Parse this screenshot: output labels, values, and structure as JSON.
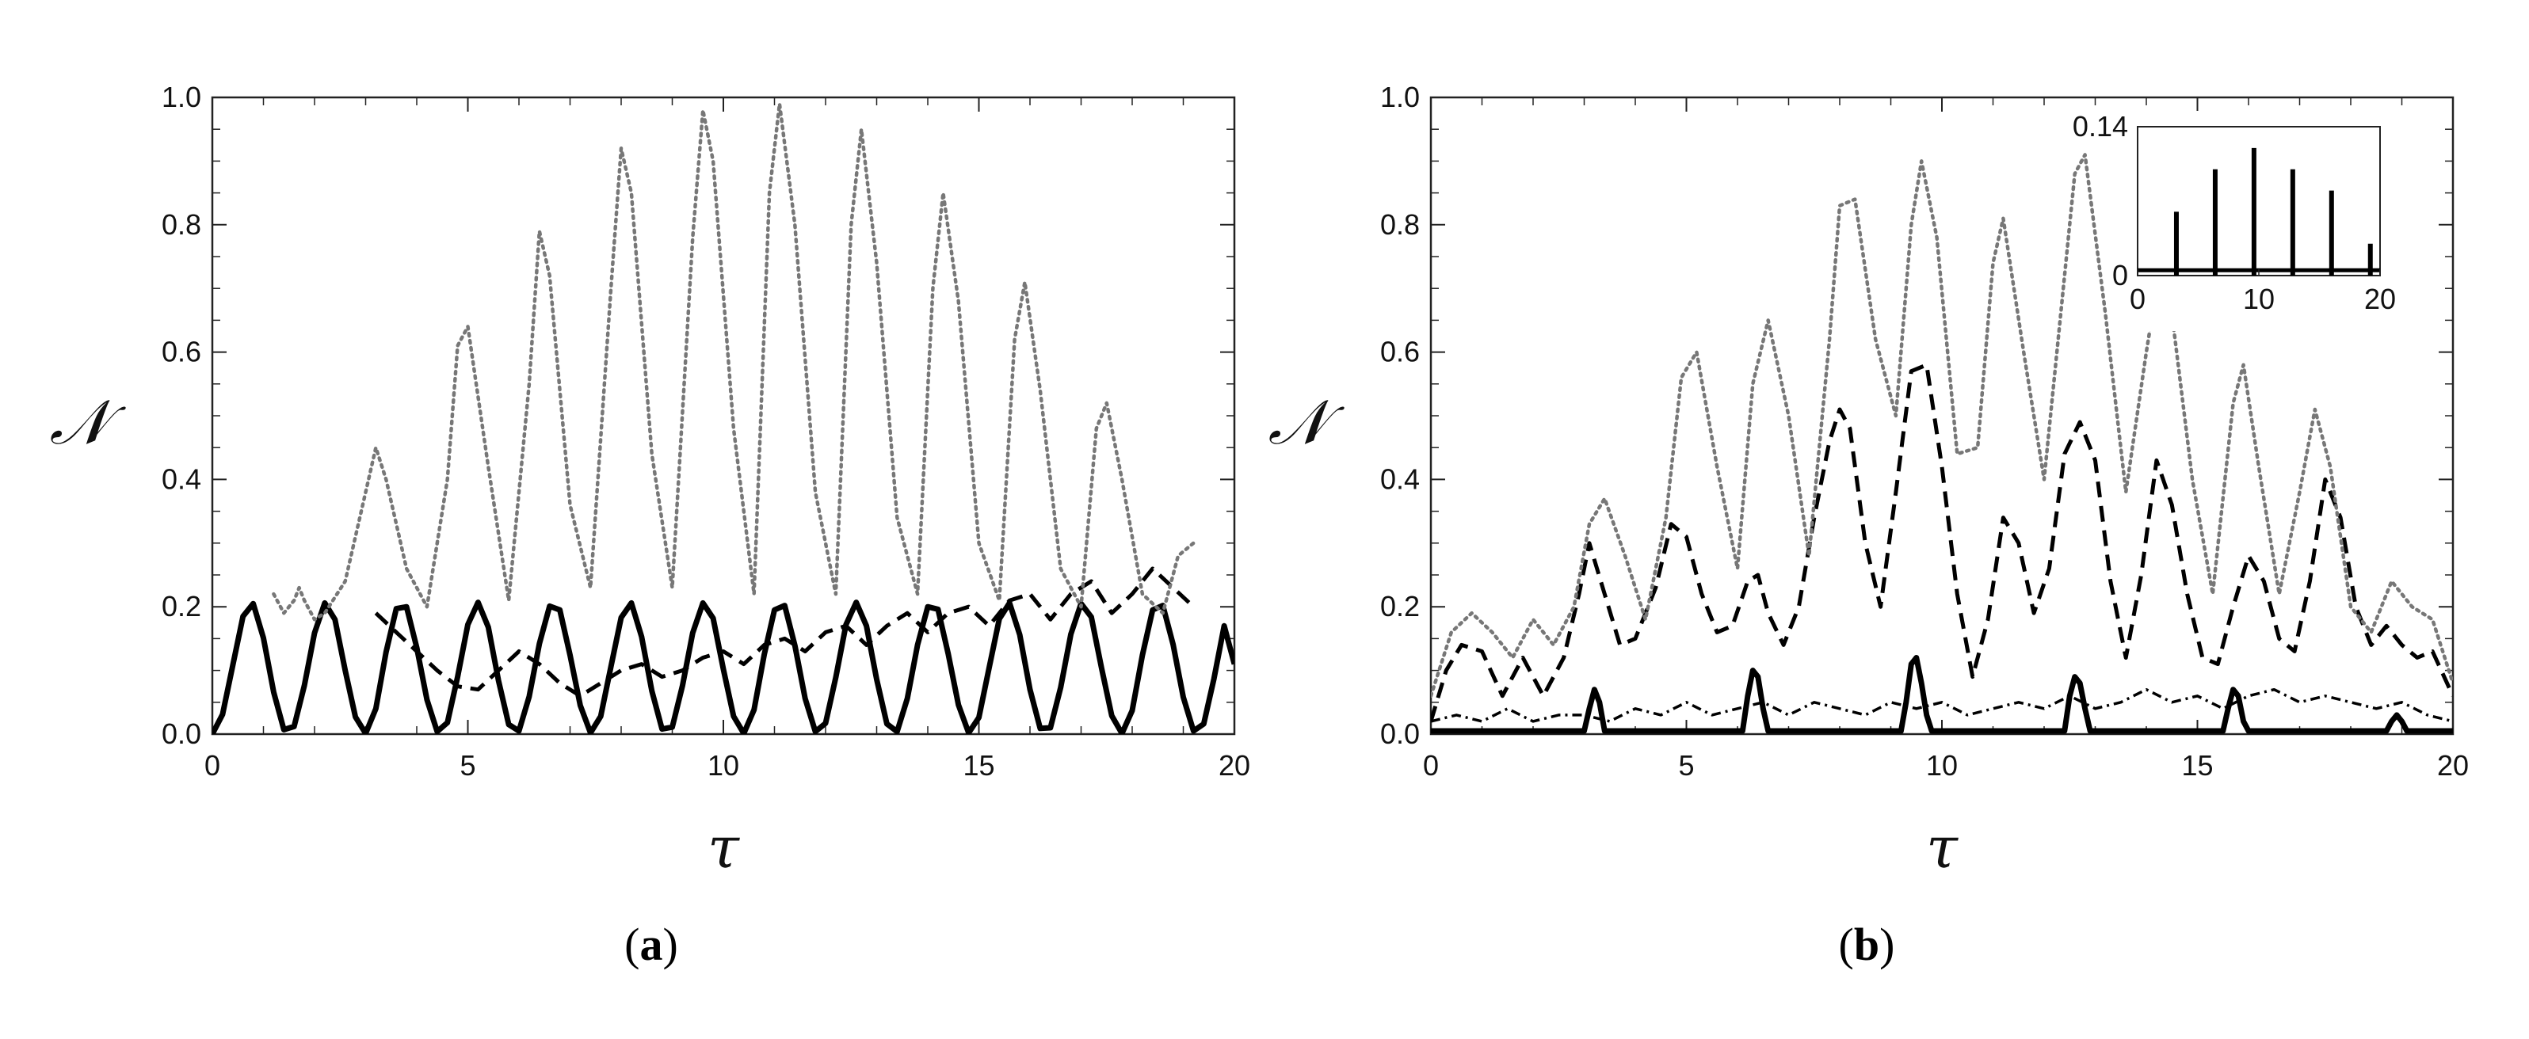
{
  "figure": {
    "panel_a_label": "a",
    "panel_b_label": "b"
  },
  "chart_data": [
    {
      "panel": "a",
      "type": "line",
      "xlabel": "τ",
      "ylabel": "𝒩",
      "xlim": [
        0,
        20
      ],
      "ylim": [
        0,
        1.0
      ],
      "xticks": [
        "0",
        "5",
        "10",
        "15",
        "20"
      ],
      "yticks": [
        "0.0",
        "0.2",
        "0.4",
        "0.6",
        "0.8",
        "1.0"
      ],
      "series": [
        {
          "style": "solid",
          "color": "#000000",
          "x": [
            0,
            0.2,
            0.4,
            0.6,
            0.8,
            1.0,
            1.2,
            1.4,
            1.6,
            1.8,
            2.0,
            2.2,
            2.4,
            2.6,
            2.8,
            3.0,
            3.2,
            3.4,
            3.6,
            3.8,
            4.0,
            4.2,
            4.4,
            4.6,
            4.8,
            5.0,
            5.2,
            5.4,
            5.6,
            5.8,
            6.0,
            6.2,
            6.4,
            6.6,
            6.8,
            7.0,
            7.2,
            7.4,
            7.6,
            7.8,
            8.0,
            8.2,
            8.4,
            8.6,
            8.8,
            9.0,
            9.2,
            9.4,
            9.6,
            9.8,
            10.0,
            10.2,
            10.4,
            10.6,
            10.8,
            11.0,
            11.2,
            11.4,
            11.6,
            11.8,
            12.0,
            12.2,
            12.4,
            12.6,
            12.8,
            13.0,
            13.2,
            13.4,
            13.6,
            13.8,
            14.0,
            14.2,
            14.4,
            14.6,
            14.8,
            15.0,
            15.2,
            15.4,
            15.6,
            15.8,
            16.0,
            16.2,
            16.4,
            16.6,
            16.8,
            17.0,
            17.2,
            17.4,
            17.6,
            17.8,
            18.0,
            18.2,
            18.4,
            18.6,
            18.8,
            19.0,
            19.2,
            19.4,
            19.6,
            19.8,
            20.0
          ],
          "y": [
            0.0,
            0.031,
            0.108,
            0.185,
            0.205,
            0.151,
            0.066,
            0.007,
            0.012,
            0.076,
            0.159,
            0.206,
            0.18,
            0.1,
            0.027,
            0.001,
            0.04,
            0.129,
            0.197,
            0.2,
            0.136,
            0.054,
            0.004,
            0.018,
            0.09,
            0.172,
            0.207,
            0.168,
            0.084,
            0.015,
            0.005,
            0.059,
            0.142,
            0.201,
            0.195,
            0.124,
            0.045,
            0.002,
            0.028,
            0.106,
            0.183,
            0.206,
            0.153,
            0.068,
            0.008,
            0.011,
            0.076,
            0.159,
            0.206,
            0.182,
            0.102,
            0.028,
            0.001,
            0.038,
            0.125,
            0.195,
            0.202,
            0.139,
            0.056,
            0.004,
            0.017,
            0.089,
            0.172,
            0.207,
            0.17,
            0.086,
            0.016,
            0.004,
            0.056,
            0.14,
            0.2,
            0.196,
            0.126,
            0.046,
            0.002,
            0.026,
            0.104,
            0.181,
            0.206,
            0.156,
            0.07,
            0.009,
            0.01,
            0.073,
            0.157,
            0.205,
            0.184,
            0.104,
            0.029,
            0.001,
            0.037,
            0.124,
            0.195,
            0.202,
            0.141,
            0.058,
            0.005,
            0.016,
            0.087,
            0.17,
            0.11
          ]
        },
        {
          "style": "dashed",
          "color": "#000000",
          "x": [
            3.2,
            3.6,
            4.0,
            4.4,
            4.8,
            5.2,
            5.6,
            6.0,
            6.4,
            6.8,
            7.2,
            7.6,
            8.0,
            8.4,
            8.8,
            9.2,
            9.6,
            10.0,
            10.4,
            10.8,
            11.2,
            11.6,
            12.0,
            12.4,
            12.8,
            13.2,
            13.6,
            14.0,
            14.4,
            14.8,
            15.2,
            15.6,
            16.0,
            16.4,
            16.8,
            17.2,
            17.6,
            18.0,
            18.4,
            18.8,
            19.2
          ],
          "y": [
            0.19,
            0.16,
            0.13,
            0.1,
            0.075,
            0.07,
            0.1,
            0.13,
            0.11,
            0.08,
            0.06,
            0.08,
            0.1,
            0.11,
            0.09,
            0.1,
            0.12,
            0.13,
            0.11,
            0.14,
            0.15,
            0.13,
            0.16,
            0.17,
            0.14,
            0.17,
            0.19,
            0.16,
            0.19,
            0.2,
            0.17,
            0.21,
            0.22,
            0.18,
            0.22,
            0.24,
            0.19,
            0.22,
            0.26,
            0.23,
            0.2
          ]
        },
        {
          "style": "dotted",
          "color": "#777777",
          "x": [
            1.2,
            1.4,
            1.6,
            1.7,
            1.8,
            2.0,
            2.2,
            2.6,
            3.0,
            3.2,
            3.4,
            3.8,
            4.2,
            4.6,
            4.8,
            5.0,
            5.4,
            5.8,
            6.2,
            6.4,
            6.6,
            7.0,
            7.4,
            7.8,
            8.0,
            8.2,
            8.6,
            9.0,
            9.4,
            9.6,
            9.8,
            10.2,
            10.6,
            10.9,
            11.1,
            11.4,
            11.8,
            12.2,
            12.5,
            12.7,
            13.0,
            13.4,
            13.8,
            14.1,
            14.3,
            14.6,
            15.0,
            15.4,
            15.7,
            15.9,
            16.2,
            16.6,
            17.0,
            17.3,
            17.5,
            17.8,
            18.2,
            18.6,
            18.9,
            19.2
          ],
          "y": [
            0.22,
            0.19,
            0.21,
            0.23,
            0.21,
            0.18,
            0.19,
            0.24,
            0.38,
            0.45,
            0.4,
            0.26,
            0.2,
            0.4,
            0.61,
            0.64,
            0.42,
            0.21,
            0.55,
            0.79,
            0.72,
            0.36,
            0.23,
            0.7,
            0.92,
            0.85,
            0.44,
            0.23,
            0.78,
            0.98,
            0.9,
            0.48,
            0.22,
            0.85,
            0.99,
            0.8,
            0.38,
            0.22,
            0.8,
            0.95,
            0.74,
            0.34,
            0.22,
            0.7,
            0.85,
            0.68,
            0.3,
            0.21,
            0.62,
            0.71,
            0.54,
            0.26,
            0.2,
            0.48,
            0.52,
            0.4,
            0.22,
            0.19,
            0.28,
            0.3
          ]
        }
      ]
    },
    {
      "panel": "b",
      "type": "line",
      "xlabel": "τ",
      "ylabel": "𝒩",
      "xlim": [
        0,
        20
      ],
      "ylim": [
        0,
        1.0
      ],
      "xticks": [
        "0",
        "5",
        "10",
        "15",
        "20"
      ],
      "yticks": [
        "0.0",
        "0.2",
        "0.4",
        "0.6",
        "0.8",
        "1.0"
      ],
      "series": [
        {
          "style": "solid",
          "color": "#000000",
          "x": [
            0,
            3.0,
            3.1,
            3.2,
            3.3,
            3.4,
            6.1,
            6.2,
            6.3,
            6.4,
            6.5,
            6.6,
            9.2,
            9.3,
            9.4,
            9.5,
            9.6,
            9.7,
            9.8,
            12.4,
            12.5,
            12.6,
            12.7,
            12.8,
            12.9,
            15.5,
            15.6,
            15.7,
            15.8,
            15.9,
            16.0,
            18.7,
            18.8,
            18.9,
            19.0,
            19.1,
            20.0
          ],
          "y": [
            0.005,
            0.005,
            0.04,
            0.07,
            0.05,
            0.005,
            0.005,
            0.06,
            0.1,
            0.09,
            0.04,
            0.005,
            0.005,
            0.05,
            0.11,
            0.12,
            0.08,
            0.03,
            0.005,
            0.005,
            0.06,
            0.09,
            0.08,
            0.04,
            0.005,
            0.005,
            0.04,
            0.07,
            0.06,
            0.02,
            0.005,
            0.005,
            0.02,
            0.03,
            0.02,
            0.005,
            0.005
          ]
        },
        {
          "style": "dashed",
          "color": "#000000",
          "x": [
            0,
            0.3,
            0.6,
            1.0,
            1.4,
            1.8,
            2.2,
            2.6,
            2.9,
            3.1,
            3.4,
            3.7,
            4.0,
            4.4,
            4.7,
            5.0,
            5.3,
            5.6,
            5.9,
            6.2,
            6.4,
            6.6,
            6.9,
            7.2,
            7.5,
            7.8,
            8.0,
            8.2,
            8.5,
            8.8,
            9.1,
            9.4,
            9.7,
            10.0,
            10.3,
            10.6,
            10.9,
            11.2,
            11.5,
            11.8,
            12.1,
            12.4,
            12.7,
            13.0,
            13.3,
            13.6,
            13.9,
            14.2,
            14.5,
            14.8,
            15.1,
            15.4,
            15.7,
            16.0,
            16.3,
            16.6,
            16.9,
            17.2,
            17.5,
            17.8,
            18.1,
            18.4,
            18.7,
            19.0,
            19.3,
            19.6,
            20.0
          ],
          "y": [
            0.02,
            0.1,
            0.14,
            0.13,
            0.06,
            0.12,
            0.06,
            0.12,
            0.22,
            0.3,
            0.22,
            0.14,
            0.15,
            0.23,
            0.33,
            0.31,
            0.22,
            0.16,
            0.17,
            0.24,
            0.25,
            0.19,
            0.14,
            0.2,
            0.34,
            0.46,
            0.51,
            0.48,
            0.3,
            0.2,
            0.38,
            0.57,
            0.58,
            0.42,
            0.22,
            0.09,
            0.18,
            0.34,
            0.3,
            0.19,
            0.26,
            0.44,
            0.49,
            0.43,
            0.24,
            0.12,
            0.25,
            0.43,
            0.36,
            0.22,
            0.12,
            0.11,
            0.2,
            0.28,
            0.24,
            0.15,
            0.13,
            0.24,
            0.4,
            0.34,
            0.2,
            0.14,
            0.17,
            0.14,
            0.12,
            0.13,
            0.06
          ]
        },
        {
          "style": "dash-dot",
          "color": "#000000",
          "x": [
            0,
            0.5,
            1.0,
            1.5,
            2.0,
            2.5,
            3.0,
            3.5,
            4.0,
            4.5,
            5.0,
            5.5,
            6.0,
            6.5,
            7.0,
            7.5,
            8.0,
            8.5,
            9.0,
            9.5,
            10.0,
            10.5,
            11.0,
            11.5,
            12.0,
            12.5,
            13.0,
            13.5,
            14.0,
            14.5,
            15.0,
            15.5,
            16.0,
            16.5,
            17.0,
            17.5,
            18.0,
            18.5,
            19.0,
            19.5,
            20.0
          ],
          "y": [
            0.02,
            0.03,
            0.02,
            0.04,
            0.02,
            0.03,
            0.03,
            0.02,
            0.04,
            0.03,
            0.05,
            0.03,
            0.04,
            0.05,
            0.03,
            0.05,
            0.04,
            0.03,
            0.05,
            0.04,
            0.05,
            0.03,
            0.04,
            0.05,
            0.04,
            0.06,
            0.04,
            0.05,
            0.07,
            0.05,
            0.06,
            0.04,
            0.06,
            0.07,
            0.05,
            0.06,
            0.05,
            0.04,
            0.05,
            0.03,
            0.02
          ]
        },
        {
          "style": "dotted",
          "color": "#777777",
          "x": [
            0,
            0.4,
            0.8,
            1.2,
            1.6,
            2.0,
            2.4,
            2.8,
            3.1,
            3.4,
            3.8,
            4.2,
            4.6,
            4.9,
            5.2,
            5.6,
            6.0,
            6.3,
            6.6,
            7.0,
            7.4,
            7.8,
            8.0,
            8.3,
            8.7,
            9.1,
            9.4,
            9.6,
            9.9,
            10.3,
            10.7,
            11.0,
            11.2,
            11.6,
            12.0,
            12.4,
            12.6,
            12.8,
            13.2,
            13.6,
            14.0,
            14.2,
            14.5,
            14.9,
            15.3,
            15.7,
            15.9,
            16.2,
            16.6,
            17.0,
            17.3,
            17.6,
            18.0,
            18.4,
            18.8,
            19.2,
            19.6,
            20.0
          ],
          "y": [
            0.06,
            0.16,
            0.19,
            0.16,
            0.12,
            0.18,
            0.14,
            0.2,
            0.33,
            0.37,
            0.28,
            0.18,
            0.34,
            0.56,
            0.6,
            0.42,
            0.26,
            0.55,
            0.65,
            0.5,
            0.28,
            0.62,
            0.83,
            0.84,
            0.62,
            0.5,
            0.8,
            0.9,
            0.78,
            0.44,
            0.45,
            0.74,
            0.81,
            0.6,
            0.4,
            0.72,
            0.88,
            0.91,
            0.66,
            0.38,
            0.6,
            0.7,
            0.66,
            0.4,
            0.22,
            0.52,
            0.58,
            0.42,
            0.22,
            0.38,
            0.51,
            0.42,
            0.2,
            0.16,
            0.24,
            0.2,
            0.18,
            0.08
          ]
        }
      ],
      "inset": {
        "type": "bar",
        "xlim": [
          0,
          20
        ],
        "ylim": [
          0,
          0.14
        ],
        "xticks": [
          "0",
          "10",
          "20"
        ],
        "yticks": [
          "0",
          "0.14"
        ],
        "x": [
          3.2,
          6.4,
          9.6,
          12.8,
          16.0,
          19.2
        ],
        "values": [
          0.06,
          0.1,
          0.12,
          0.1,
          0.08,
          0.03
        ],
        "baseline": 0.005
      }
    }
  ]
}
